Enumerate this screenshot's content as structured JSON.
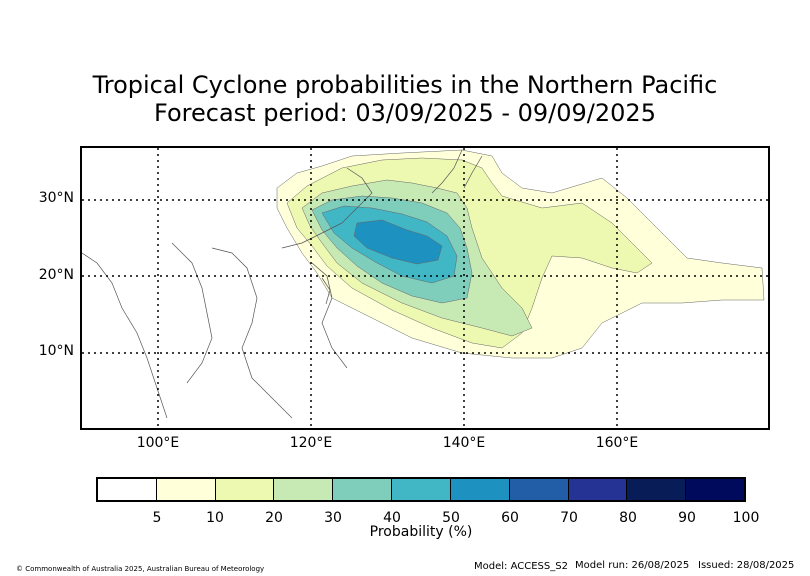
{
  "title_line1": "Tropical Cyclone probabilities in the Northern Pacific",
  "title_line2": "Forecast period: 03/09/2025 - 09/09/2025",
  "lat_labels": [
    "30°N",
    "20°N",
    "10°N"
  ],
  "lon_labels": [
    "100°E",
    "120°E",
    "140°E",
    "160°E"
  ],
  "colorbar": {
    "label": "Probability (%)",
    "ticks": [
      "5",
      "10",
      "20",
      "30",
      "40",
      "50",
      "60",
      "70",
      "80",
      "90",
      "100"
    ],
    "colors": [
      "#ffffff",
      "#ffffd9",
      "#edf8b1",
      "#c7e9b4",
      "#7fcdbb",
      "#41b6c4",
      "#1d91c0",
      "#225ea8",
      "#253494",
      "#081d58",
      "#000a5c"
    ]
  },
  "footer": {
    "copyright": "© Commonwealth of Australia 2025, Australian Bureau of Meteorology",
    "model": "Model: ACCESS_S2",
    "model_run": "Model run: 26/08/2025",
    "issued": "Issued: 28/08/2025"
  }
}
